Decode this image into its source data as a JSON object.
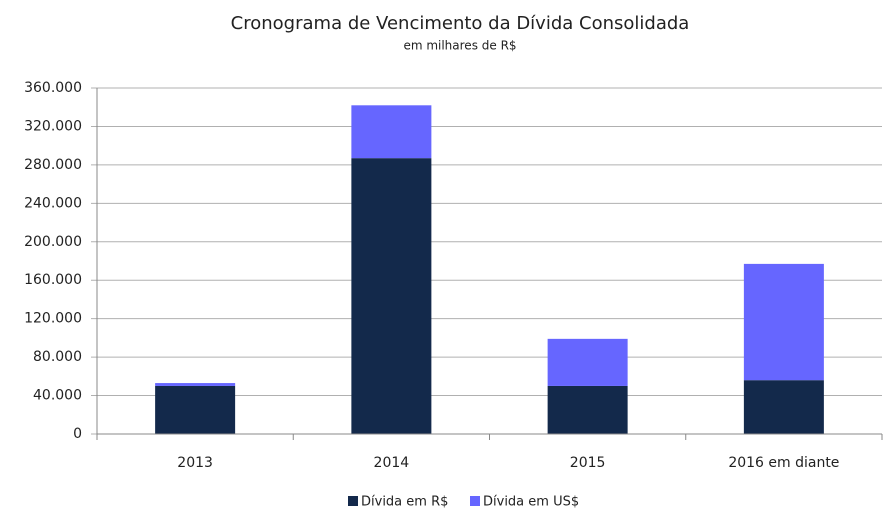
{
  "chart_data": {
    "type": "stacked_bar",
    "title": "Cronograma de Vencimento da Dívida Consolidada",
    "subtitle": "em milhares de R$",
    "categories": [
      "2013",
      "2014",
      "2015",
      "2016 em diante"
    ],
    "series": [
      {
        "name": "Dívida em R$",
        "color": "#13294b",
        "values": [
          50000,
          287000,
          50000,
          56000
        ]
      },
      {
        "name": "Dívida em US$",
        "color": "#6666ff",
        "values": [
          3000,
          55000,
          49000,
          121000
        ]
      }
    ],
    "ylim": [
      0,
      360000
    ],
    "yticks": [
      0,
      {
        "value": 40000,
        "label": "40.000"
      },
      {
        "value": 80000,
        "label": "80.000"
      },
      {
        "value": 120000,
        "label": "120.000"
      },
      {
        "value": 160000,
        "label": "160.000"
      },
      {
        "value": 200000,
        "label": "200.000"
      },
      {
        "value": 240000,
        "label": "240.000"
      },
      {
        "value": 280000,
        "label": "280.000"
      },
      {
        "value": 320000,
        "label": "320.000"
      },
      {
        "value": 360000,
        "label": "360.000"
      }
    ],
    "grid": true,
    "legend": "bottom"
  }
}
